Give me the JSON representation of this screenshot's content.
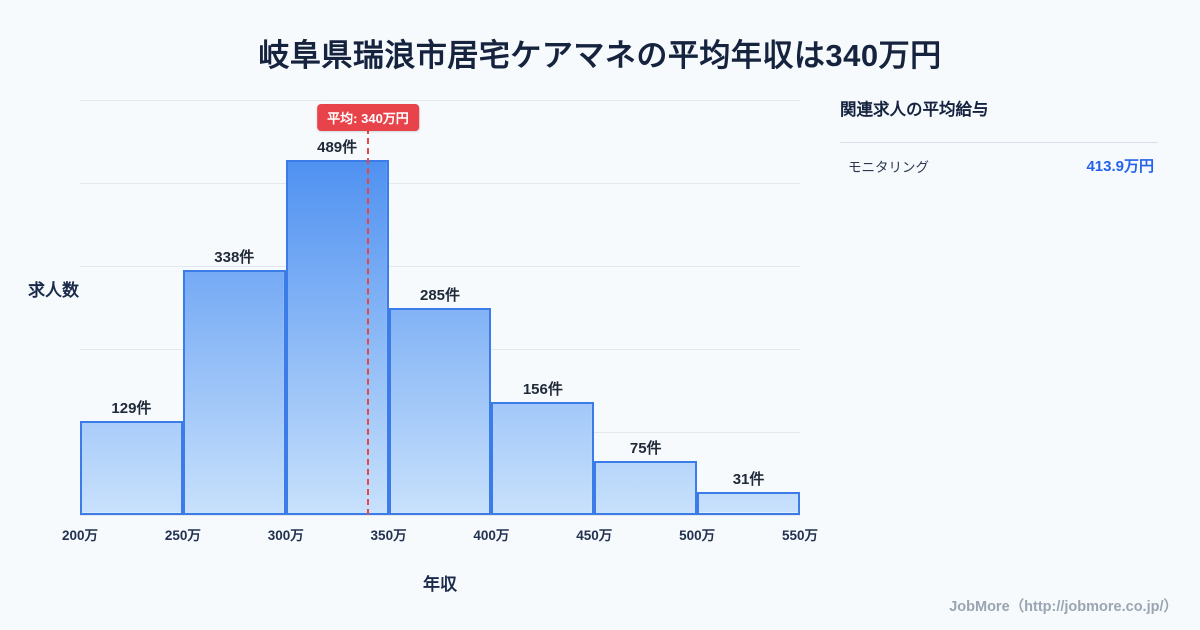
{
  "title": "岐阜県瑞浪市居宅ケアマネの平均年収は340万円",
  "chart_data": {
    "type": "bar",
    "x_ticks": [
      "200万",
      "250万",
      "300万",
      "350万",
      "400万",
      "450万",
      "500万",
      "550万"
    ],
    "values": [
      129,
      338,
      489,
      285,
      156,
      75,
      31
    ],
    "bar_labels": [
      "129件",
      "338件",
      "489件",
      "285件",
      "156件",
      "75件",
      "31件"
    ],
    "xlabel": "年収",
    "ylabel": "求人数",
    "x_range": [
      200,
      550
    ],
    "average": {
      "value": 340,
      "label": "平均: 340万円"
    },
    "grid": true,
    "colors": {
      "bar_top": "#4e90f1",
      "bar_bottom": "#c8e1fc",
      "bar_border": "#3b7ce8",
      "average_red": "#e8434a",
      "value_blue": "#2563eb"
    }
  },
  "side_panel": {
    "heading": "関連求人の平均給与",
    "rows": [
      {
        "label": "モニタリング",
        "value": "413.9万円"
      }
    ]
  },
  "footer": {
    "credit": "JobMore（http://jobmore.co.jp/）"
  }
}
